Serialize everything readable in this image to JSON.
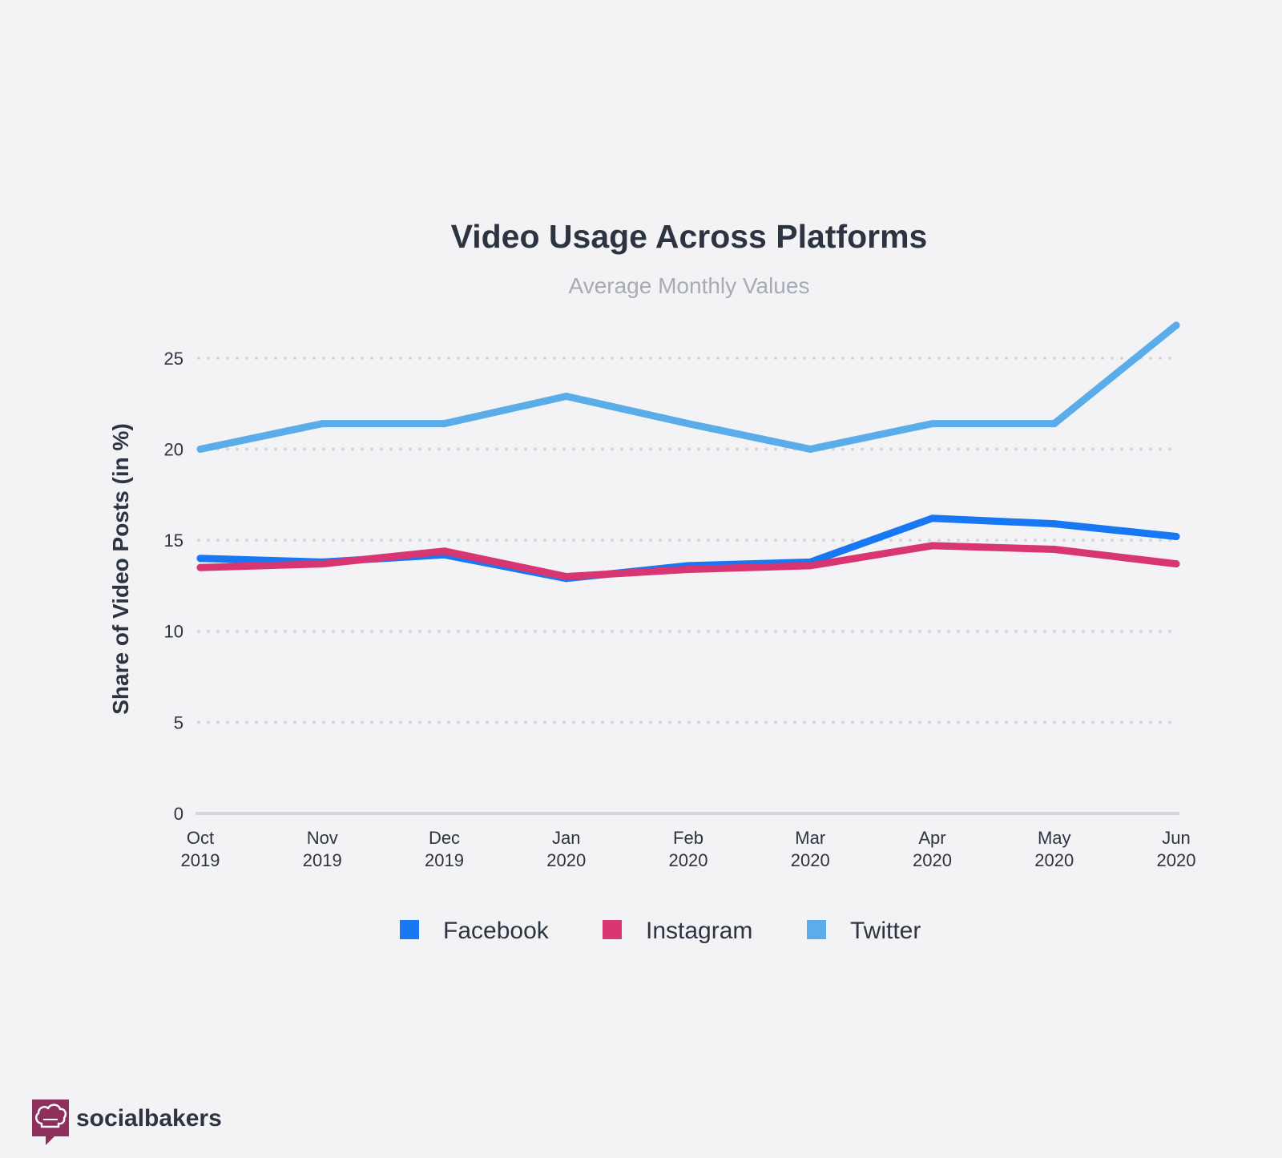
{
  "chart_data": {
    "type": "line",
    "title": "Video Usage Across Platforms",
    "subtitle": "Average Monthly Values",
    "ylabel": "Share of Video Posts (in %)",
    "xlabel": "",
    "ylim": [
      0,
      27.5
    ],
    "yticks": [
      0,
      5,
      10,
      15,
      20,
      25
    ],
    "grid": true,
    "legend_position": "bottom",
    "categories": [
      [
        "Oct",
        "2019"
      ],
      [
        "Nov",
        "2019"
      ],
      [
        "Dec",
        "2019"
      ],
      [
        "Jan",
        "2020"
      ],
      [
        "Feb",
        "2020"
      ],
      [
        "Mar",
        "2020"
      ],
      [
        "Apr",
        "2020"
      ],
      [
        "May",
        "2020"
      ],
      [
        "Jun",
        "2020"
      ]
    ],
    "series": [
      {
        "name": "Facebook",
        "color": "#1877f2",
        "values": [
          14.0,
          13.8,
          14.2,
          12.9,
          13.6,
          13.8,
          16.2,
          15.9,
          15.2
        ]
      },
      {
        "name": "Instagram",
        "color": "#d83673",
        "values": [
          13.5,
          13.7,
          14.4,
          13.0,
          13.4,
          13.6,
          14.7,
          14.5,
          13.7
        ]
      },
      {
        "name": "Twitter",
        "color": "#5aade9",
        "values": [
          20.0,
          21.4,
          21.4,
          22.9,
          21.4,
          20.0,
          21.4,
          21.4,
          26.8
        ]
      }
    ]
  },
  "branding": {
    "name": "socialbakers",
    "icon": "chef-hat-icon",
    "color": "#8e2f5c"
  },
  "colors": {
    "background": "#f3f3f6",
    "text": "#2c3341",
    "subtitle": "#a7abb6",
    "grid": "#d4d6dc",
    "axis": "#d4d6dc"
  }
}
